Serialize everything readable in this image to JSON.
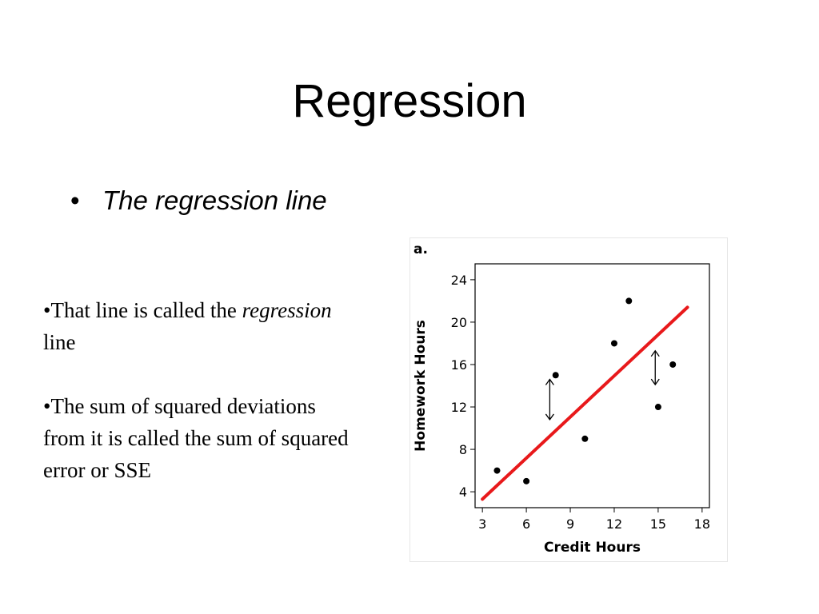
{
  "slide": {
    "title": "Regression",
    "bullet_marker": "•",
    "bullet": "The regression line"
  },
  "notes": [
    {
      "marker": "•",
      "text": "That line is called the ",
      "emph": "regression",
      "after": " line"
    },
    {
      "marker": "•",
      "text": "The sum of squared deviations from it is called the sum of squared error or SSE"
    }
  ],
  "chart_data": {
    "type": "scatter",
    "panel_label": "a.",
    "xlabel": "Credit Hours",
    "ylabel": "Homework Hours",
    "xlim": [
      2.5,
      18.5
    ],
    "ylim": [
      2.5,
      25.5
    ],
    "xticks": [
      3,
      6,
      9,
      12,
      15,
      18
    ],
    "yticks": [
      4,
      8,
      12,
      16,
      20,
      24
    ],
    "grid": false,
    "points": [
      {
        "x": 4,
        "y": 6
      },
      {
        "x": 6,
        "y": 5
      },
      {
        "x": 8,
        "y": 15
      },
      {
        "x": 10,
        "y": 9
      },
      {
        "x": 12,
        "y": 18
      },
      {
        "x": 13,
        "y": 22
      },
      {
        "x": 15,
        "y": 12
      },
      {
        "x": 16,
        "y": 16
      }
    ],
    "regression_line": {
      "x": [
        3,
        17
      ],
      "y": [
        3.3,
        21.4
      ],
      "color": "#e8191b"
    },
    "residual_arrows": [
      {
        "x": 7.6,
        "y1": 10.8,
        "y2": 14.6
      },
      {
        "x": 14.8,
        "y1": 14.1,
        "y2": 17.3
      }
    ]
  }
}
